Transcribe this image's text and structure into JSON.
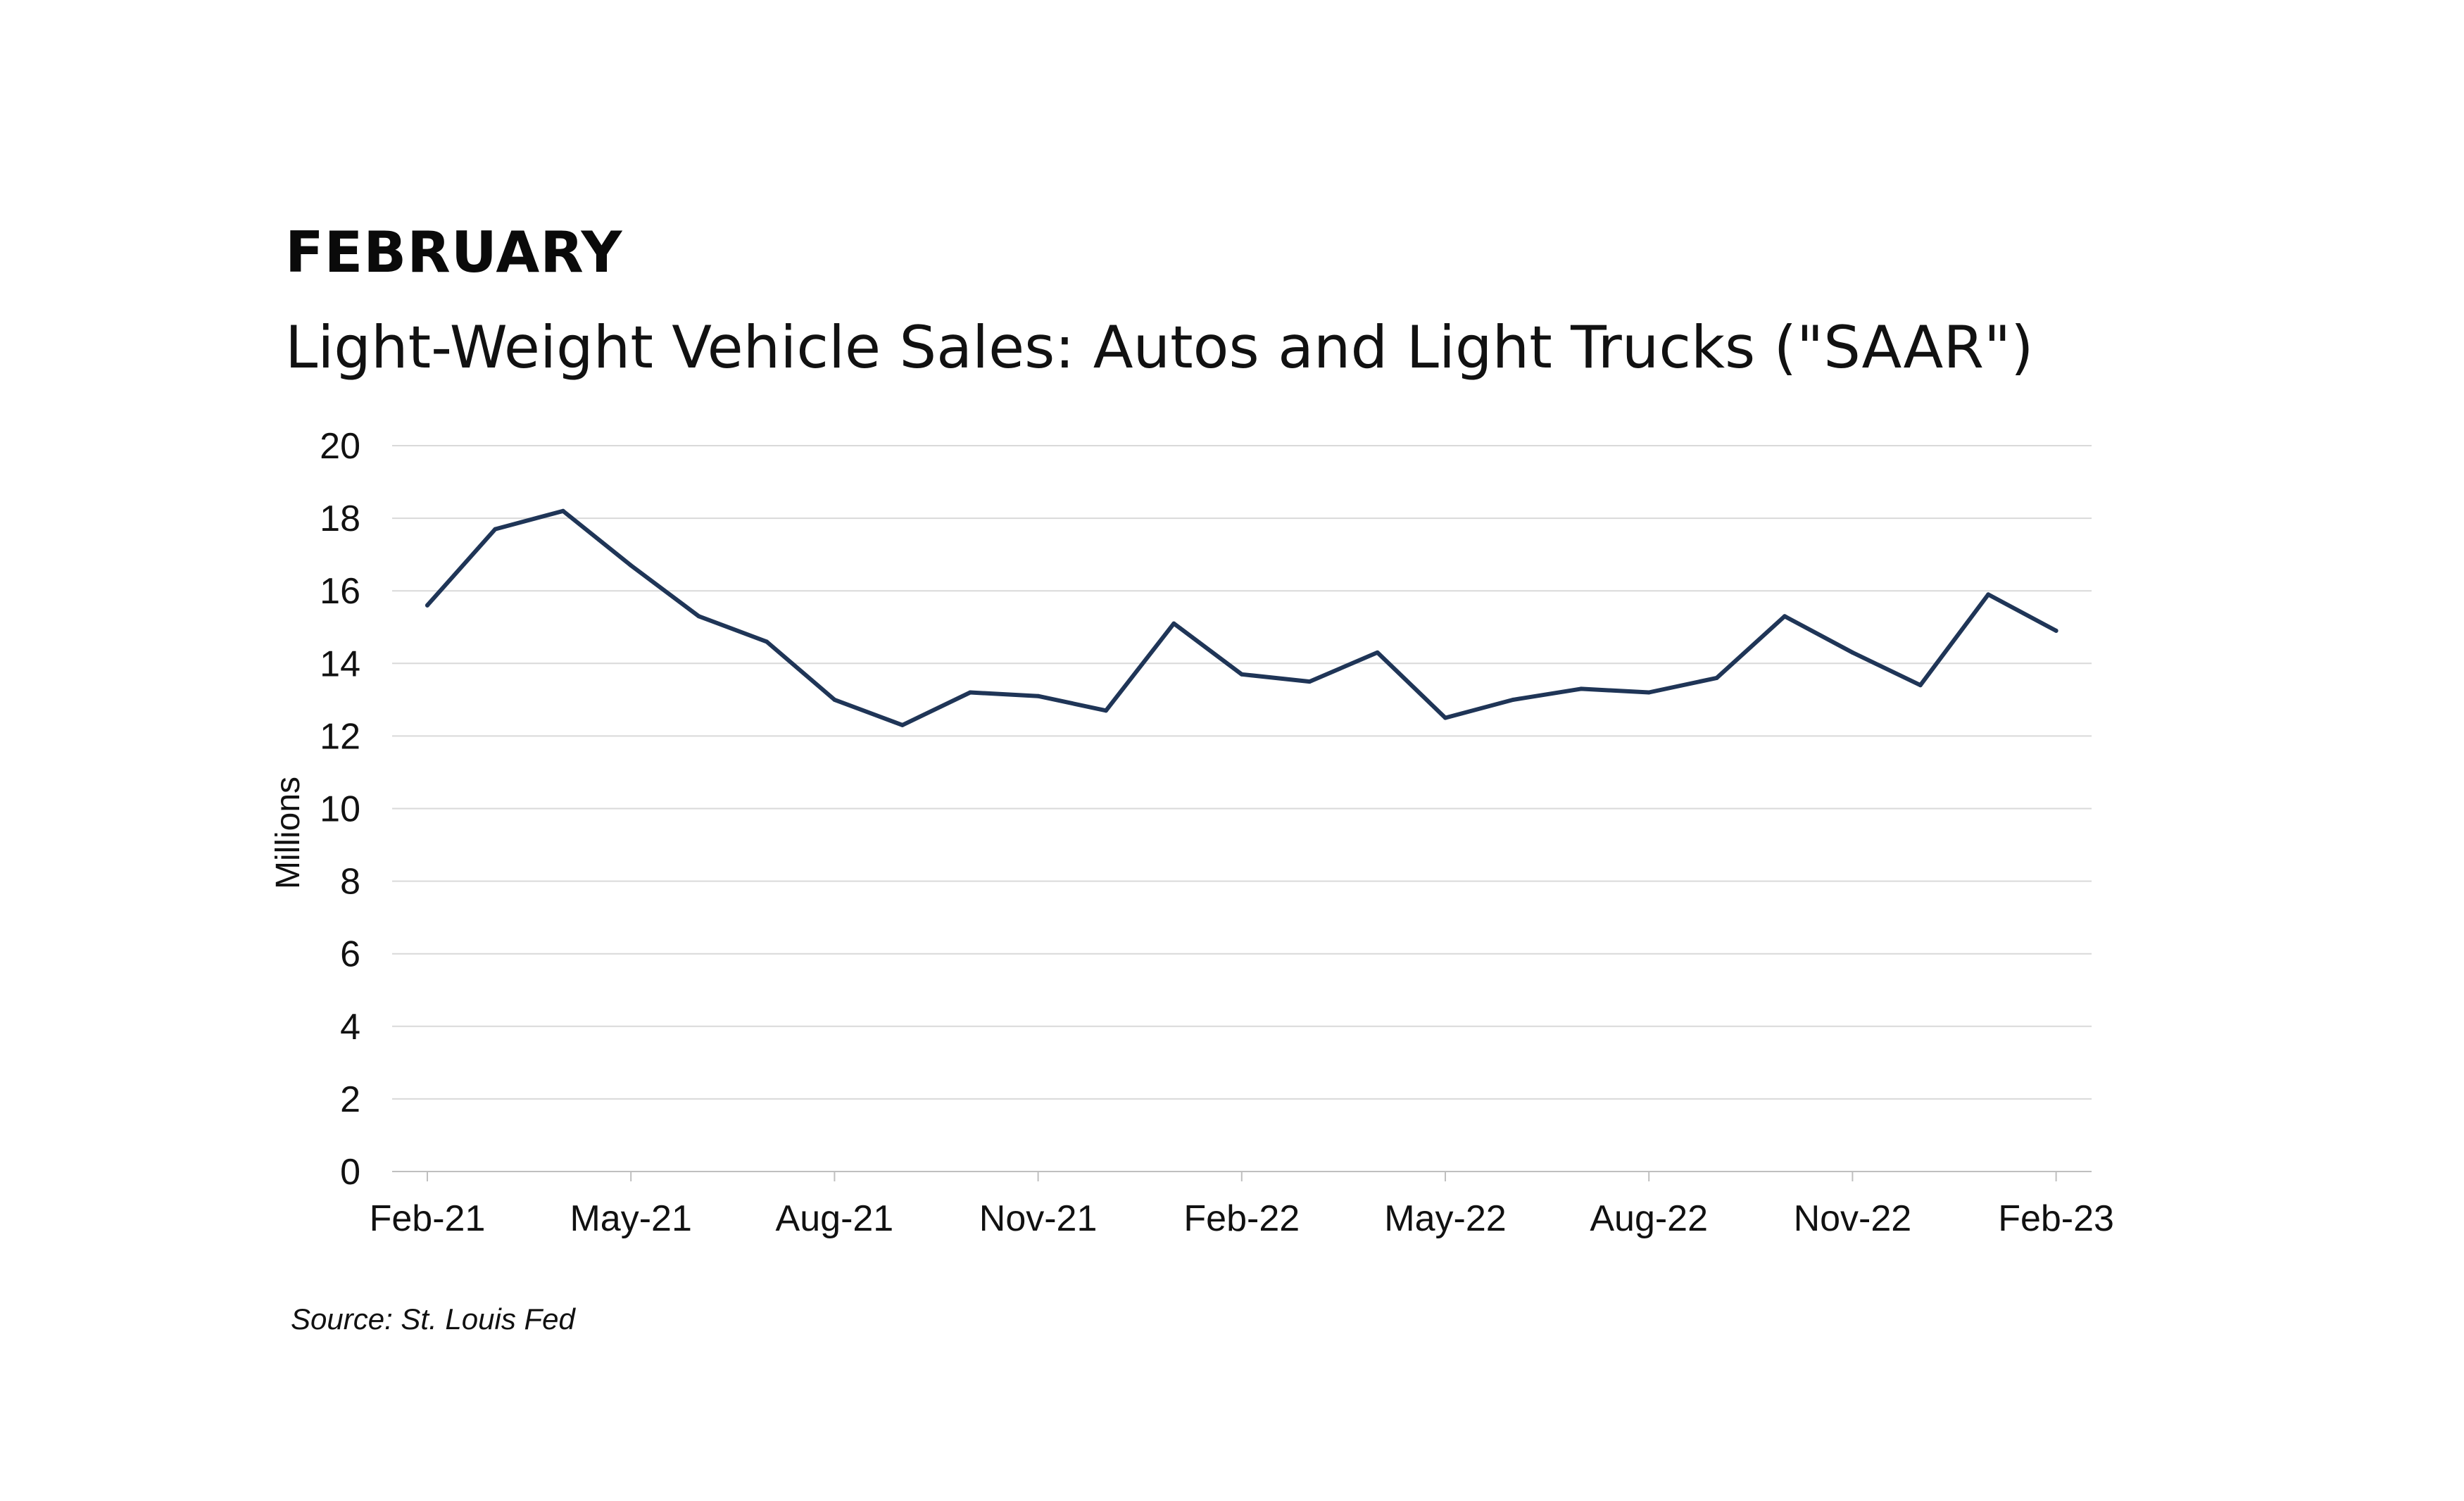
{
  "header": {
    "heading": "FEBRUARY"
  },
  "footer": {
    "source": "Source: St. Louis Fed"
  },
  "chart_data": {
    "type": "line",
    "title": "Light-Weight Vehicle Sales: Autos and Light Trucks (\"SAAR\")",
    "ylabel": "Millions",
    "xlabel": "",
    "ylim": [
      0,
      20
    ],
    "yticks": [
      0,
      2,
      4,
      6,
      8,
      10,
      12,
      14,
      16,
      18,
      20
    ],
    "xtick_labels": [
      "Feb-21",
      "May-21",
      "Aug-21",
      "Nov-21",
      "Feb-22",
      "May-22",
      "Aug-22",
      "Nov-22",
      "Feb-23"
    ],
    "grid": true,
    "line_color": "#1f3557",
    "x": [
      "2021-02",
      "2021-03",
      "2021-04",
      "2021-05",
      "2021-06",
      "2021-07",
      "2021-08",
      "2021-09",
      "2021-10",
      "2021-11",
      "2021-12",
      "2022-01",
      "2022-02",
      "2022-03",
      "2022-04",
      "2022-05",
      "2022-06",
      "2022-07",
      "2022-08",
      "2022-09",
      "2022-10",
      "2022-11",
      "2022-12",
      "2023-01",
      "2023-02"
    ],
    "series": [
      {
        "values": [
          15.6,
          17.7,
          18.2,
          16.7,
          15.3,
          14.6,
          13.0,
          12.3,
          13.2,
          13.1,
          12.7,
          15.1,
          13.7,
          13.5,
          14.3,
          12.5,
          13.0,
          13.3,
          13.2,
          13.6,
          15.3,
          14.3,
          13.4,
          15.9,
          14.9
        ]
      }
    ]
  }
}
